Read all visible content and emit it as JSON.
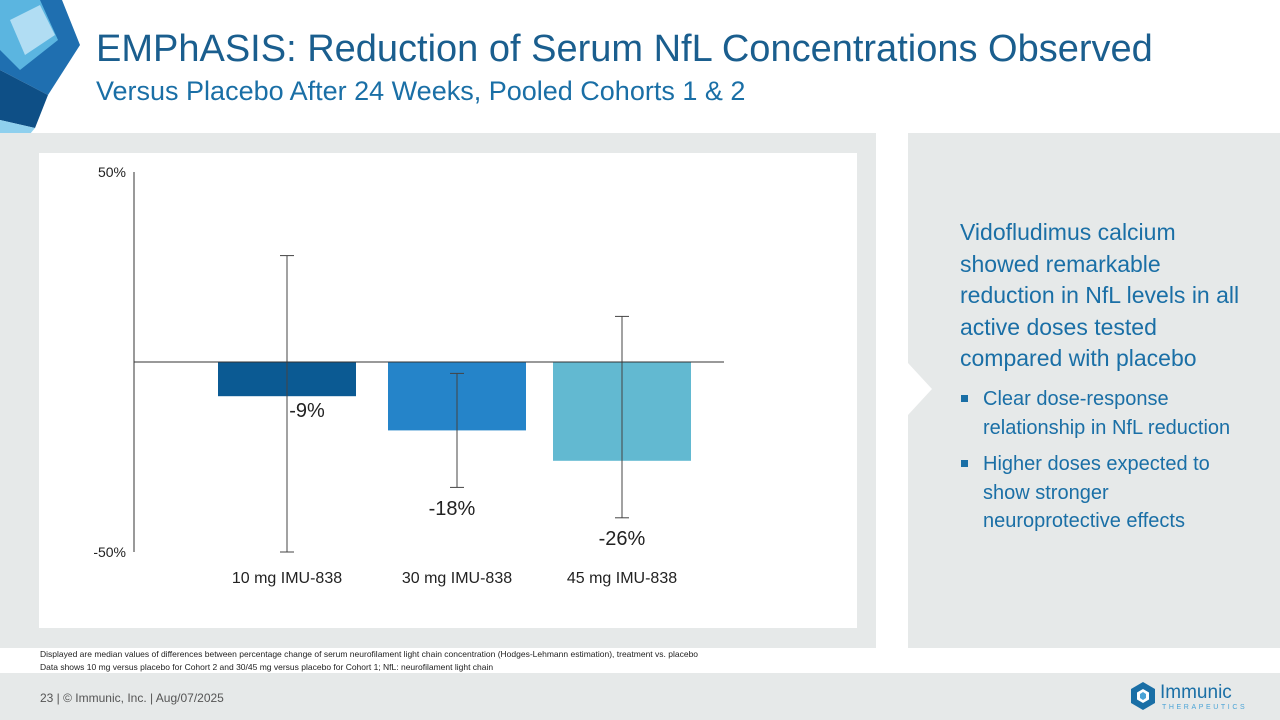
{
  "header": {
    "title": "EMPhASIS: Reduction of Serum NfL Concentrations Observed",
    "subtitle": "Versus Placebo After 24 Weeks, Pooled Cohorts 1 & 2"
  },
  "chart_data": {
    "type": "bar",
    "categories": [
      "10 mg IMU-838",
      "30 mg IMU-838",
      "45 mg IMU-838"
    ],
    "values": [
      -9,
      -18,
      -26
    ],
    "data_labels": [
      "-9%",
      "-18%",
      "-26%"
    ],
    "error_low": [
      -50,
      -33,
      -41
    ],
    "error_high": [
      28,
      -3,
      12
    ],
    "ytick_labels": [
      "50%",
      "-50%"
    ],
    "ylim": [
      -50,
      50
    ],
    "colors": [
      "#0b5a93",
      "#2584c9",
      "#62b9d1"
    ],
    "title": "",
    "xlabel": "",
    "ylabel": "",
    "grid": false,
    "legend": "none"
  },
  "panel": {
    "lead": "Vidofludimus calcium showed remarkable reduction in NfL levels in all active doses tested compared with placebo",
    "bullets": [
      "Clear dose-response relationship in NfL reduction",
      "Higher doses expected to show stronger neuroprotective effects"
    ]
  },
  "footnotes": {
    "line1": "Displayed are median values of differences between percentage change of serum neurofilament light chain concentration (Hodges-Lehmann estimation), treatment vs. placebo",
    "line2": "Data shows 10 mg versus placebo for Cohort 2 and 30/45 mg versus placebo for Cohort 1; NfL: neurofilament light chain"
  },
  "footer": {
    "text": "23   |  © Immunic, Inc.  | Aug/07/2025"
  },
  "logo": {
    "name": "Immunic",
    "sub": "THERAPEUTICS"
  },
  "colors": {
    "title": "#1a5e8e",
    "accent": "#1a6fa6",
    "panel_bg": "#e6e9e9"
  }
}
